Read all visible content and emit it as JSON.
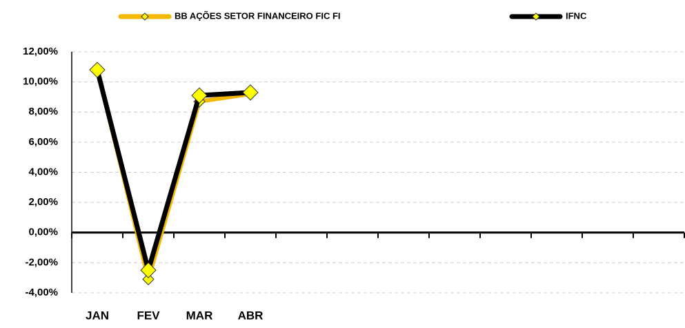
{
  "chart_data": {
    "type": "line",
    "categories": [
      "JAN",
      "FEV",
      "MAR",
      "ABR",
      null,
      null,
      null,
      null,
      null,
      null,
      null,
      null
    ],
    "series": [
      {
        "name": "BB AÇÕES SETOR FINANCEIRO FIC FI",
        "color": "#f5b800",
        "values": [
          10.85,
          -3.1,
          8.7,
          9.2,
          null,
          null,
          null,
          null,
          null,
          null,
          null,
          null
        ]
      },
      {
        "name": "IFNC",
        "color": "#000000",
        "values": [
          10.8,
          -2.5,
          9.1,
          9.3,
          null,
          null,
          null,
          null,
          null,
          null,
          null,
          null
        ]
      }
    ],
    "ylim": [
      -4,
      12
    ],
    "yticks": [
      {
        "value": -4,
        "label": "-4,00%"
      },
      {
        "value": -2,
        "label": "-2,00%"
      },
      {
        "value": 0,
        "label": "0,00%"
      },
      {
        "value": 2,
        "label": "2,00%"
      },
      {
        "value": 4,
        "label": "4,00%"
      },
      {
        "value": 6,
        "label": "6,00%"
      },
      {
        "value": 8,
        "label": "8,00%"
      },
      {
        "value": 10,
        "label": "10,00%"
      },
      {
        "value": 12,
        "label": "12,00%"
      }
    ],
    "grid": true,
    "legend": "top",
    "marker_color": "#ffff00"
  }
}
